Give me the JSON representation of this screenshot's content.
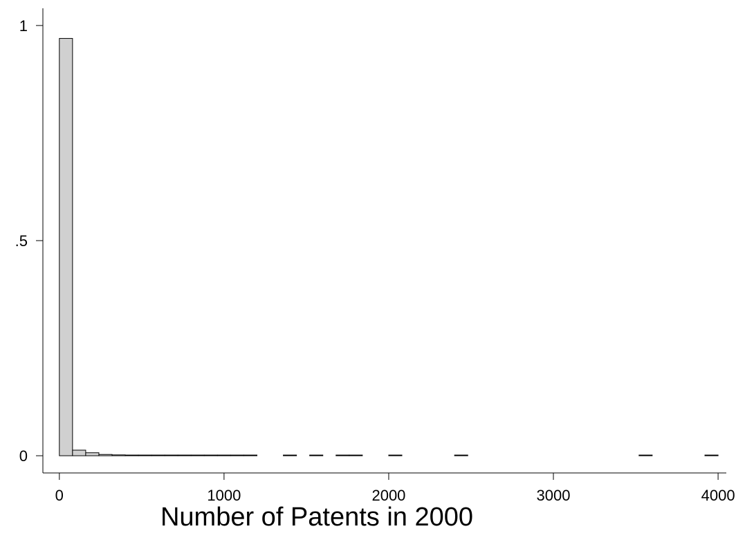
{
  "chart_data": {
    "type": "bar",
    "xlabel": "Number of Patents in 2000",
    "ylabel": "",
    "xlim": [
      -100,
      4050
    ],
    "ylim": [
      -0.04,
      1.04
    ],
    "x_ticks": [
      0,
      1000,
      2000,
      3000,
      4000
    ],
    "x_tick_labels": [
      "0",
      "1000",
      "2000",
      "3000",
      "4000"
    ],
    "y_ticks": [
      0,
      0.5,
      1
    ],
    "y_tick_labels": [
      "0",
      ".5",
      "1"
    ],
    "bin_width": 80,
    "bins": [
      {
        "start": 0,
        "value": 0.97
      },
      {
        "start": 80,
        "value": 0.013
      },
      {
        "start": 160,
        "value": 0.007
      },
      {
        "start": 240,
        "value": 0.003
      },
      {
        "start": 320,
        "value": 0.002
      },
      {
        "start": 400,
        "value": 0.001
      },
      {
        "start": 480,
        "value": 0.001
      },
      {
        "start": 560,
        "value": 0.001
      },
      {
        "start": 640,
        "value": 0.001
      },
      {
        "start": 720,
        "value": 0.001
      },
      {
        "start": 800,
        "value": 0.001
      },
      {
        "start": 880,
        "value": 0.001
      },
      {
        "start": 960,
        "value": 0.001
      },
      {
        "start": 1040,
        "value": 0.001
      },
      {
        "start": 1120,
        "value": 0.001
      },
      {
        "start": 1360,
        "value": 0.001
      },
      {
        "start": 1520,
        "value": 0.001
      },
      {
        "start": 1680,
        "value": 0.001
      },
      {
        "start": 1760,
        "value": 0.001
      },
      {
        "start": 2000,
        "value": 0.001
      },
      {
        "start": 2400,
        "value": 0.001
      },
      {
        "start": 3520,
        "value": 0.001
      },
      {
        "start": 3920,
        "value": 0.001
      }
    ],
    "grid": false,
    "legend": "none",
    "bar_color": "#d0d0d0"
  }
}
